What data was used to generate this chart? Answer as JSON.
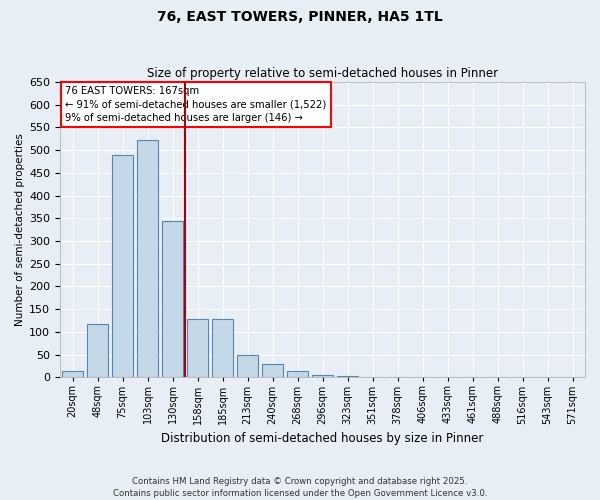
{
  "title": "76, EAST TOWERS, PINNER, HA5 1TL",
  "subtitle": "Size of property relative to semi-detached houses in Pinner",
  "xlabel": "Distribution of semi-detached houses by size in Pinner",
  "ylabel": "Number of semi-detached properties",
  "categories": [
    "20sqm",
    "48sqm",
    "75sqm",
    "103sqm",
    "130sqm",
    "158sqm",
    "185sqm",
    "213sqm",
    "240sqm",
    "268sqm",
    "296sqm",
    "323sqm",
    "351sqm",
    "378sqm",
    "406sqm",
    "433sqm",
    "461sqm",
    "488sqm",
    "516sqm",
    "543sqm",
    "571sqm"
  ],
  "values": [
    15,
    118,
    490,
    522,
    345,
    128,
    128,
    50,
    30,
    15,
    5,
    2,
    1,
    0,
    0,
    0,
    0,
    0,
    0,
    1,
    0
  ],
  "bar_color": "#c5d8e8",
  "bar_edge_color": "#5585b5",
  "marker_label": "76 EAST TOWERS: 167sqm",
  "annotation_line1": "← 91% of semi-detached houses are smaller (1,522)",
  "annotation_line2": "9% of semi-detached houses are larger (146) →",
  "vline_color": "#aa0000",
  "vline_pos": 4.5,
  "ylim": [
    0,
    650
  ],
  "yticks": [
    0,
    50,
    100,
    150,
    200,
    250,
    300,
    350,
    400,
    450,
    500,
    550,
    600,
    650
  ],
  "bg_color": "#e8eef5",
  "grid_color": "#ffffff",
  "footer_line1": "Contains HM Land Registry data © Crown copyright and database right 2025.",
  "footer_line2": "Contains public sector information licensed under the Open Government Licence v3.0."
}
